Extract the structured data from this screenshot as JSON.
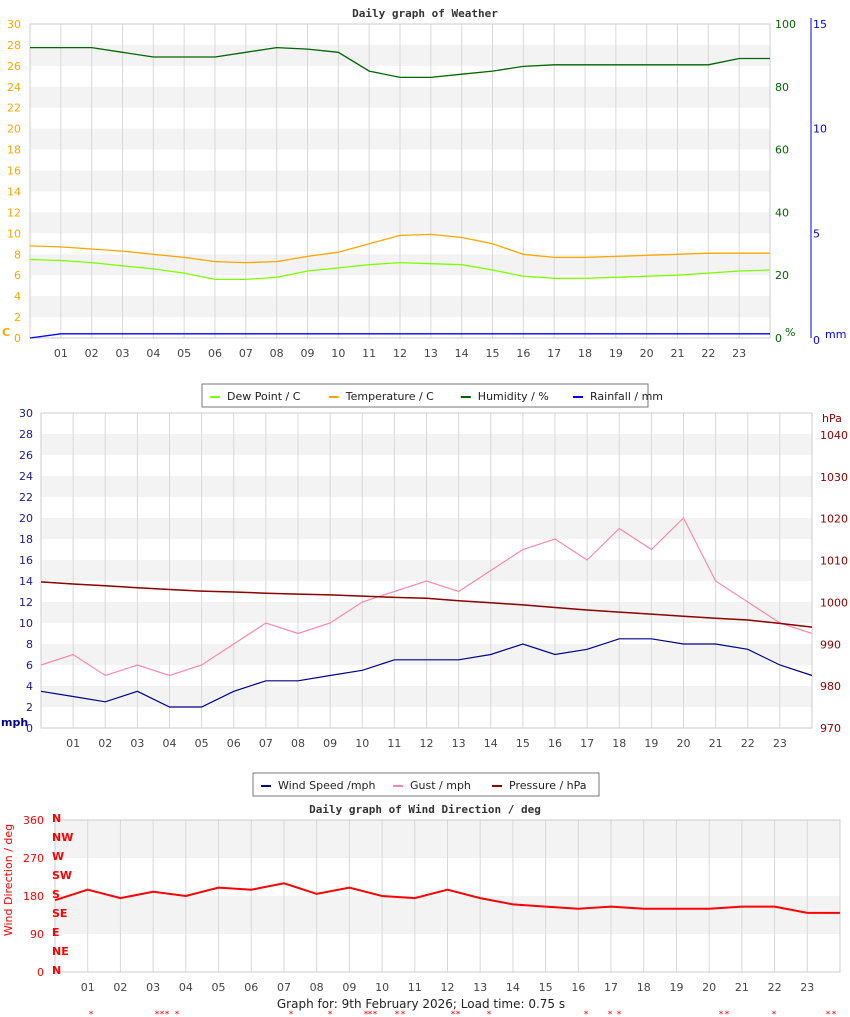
{
  "colors": {
    "dew": "#80ff00",
    "temp": "#ffa500",
    "hum": "#006400",
    "rain": "#0000ff",
    "wind": "#00008b",
    "gust": "#ff88aa",
    "pres": "#8b0000",
    "dir": "#ff0000",
    "grid": "#d8d8d8",
    "band": "#f3f3f3"
  },
  "chart_data": [
    {
      "type": "line",
      "title": "Daily graph of Weather",
      "x_tick_labels": [
        "01",
        "02",
        "03",
        "04",
        "05",
        "06",
        "07",
        "08",
        "09",
        "10",
        "11",
        "12",
        "13",
        "14",
        "15",
        "16",
        "17",
        "18",
        "19",
        "20",
        "21",
        "22",
        "23"
      ],
      "xlim": [
        0,
        24
      ],
      "axes": {
        "left": {
          "unit": "C",
          "ylim": [
            0,
            30
          ],
          "ticks": [
            0,
            2,
            4,
            6,
            8,
            10,
            12,
            14,
            16,
            18,
            20,
            22,
            24,
            26,
            28,
            30
          ]
        },
        "right1": {
          "unit": "%",
          "ylim": [
            0,
            100
          ],
          "ticks": [
            0,
            20,
            40,
            60,
            80,
            100
          ]
        },
        "right2": {
          "unit": "mm",
          "ylim": [
            0,
            15
          ],
          "ticks": [
            0,
            5,
            10,
            15
          ]
        }
      },
      "grid": true,
      "legend_placement": "bottom",
      "x": [
        0,
        1,
        2,
        3,
        4,
        5,
        6,
        7,
        8,
        9,
        10,
        11,
        12,
        13,
        14,
        15,
        16,
        17,
        18,
        19,
        20,
        21,
        22,
        23,
        24
      ],
      "series": [
        {
          "name": "Dew Point / C",
          "axis": "left",
          "color_key": "dew",
          "values": [
            7.5,
            7.4,
            7.2,
            6.9,
            6.6,
            6.2,
            5.6,
            5.6,
            5.8,
            6.4,
            6.7,
            7.0,
            7.2,
            7.1,
            7.0,
            6.5,
            5.9,
            5.7,
            5.7,
            5.8,
            5.9,
            6.0,
            6.2,
            6.4,
            6.5
          ]
        },
        {
          "name": "Temperature / C",
          "axis": "left",
          "color_key": "temp",
          "values": [
            8.8,
            8.7,
            8.5,
            8.3,
            8.0,
            7.7,
            7.3,
            7.2,
            7.3,
            7.8,
            8.2,
            9.0,
            9.8,
            9.9,
            9.6,
            9.0,
            8.0,
            7.7,
            7.7,
            7.8,
            7.9,
            8.0,
            8.1,
            8.1,
            8.1
          ]
        },
        {
          "name": "Humidity / %",
          "axis": "right1",
          "color_key": "hum",
          "values": [
            92.5,
            92.5,
            92.5,
            91,
            89.5,
            89.5,
            89.5,
            91,
            92.5,
            92,
            91,
            85,
            83,
            83,
            84,
            85,
            86.5,
            87,
            87,
            87,
            87,
            87,
            87,
            89,
            89
          ]
        },
        {
          "name": "Rainfall / mm",
          "axis": "right2",
          "color_key": "rain",
          "values": [
            0,
            0.2,
            0.2,
            0.2,
            0.2,
            0.2,
            0.2,
            0.2,
            0.2,
            0.2,
            0.2,
            0.2,
            0.2,
            0.2,
            0.2,
            0.2,
            0.2,
            0.2,
            0.2,
            0.2,
            0.2,
            0.2,
            0.2,
            0.2,
            0.2
          ]
        }
      ]
    },
    {
      "type": "line",
      "title": "",
      "x_tick_labels": [
        "01",
        "02",
        "03",
        "04",
        "05",
        "06",
        "07",
        "08",
        "09",
        "10",
        "11",
        "12",
        "13",
        "14",
        "15",
        "16",
        "17",
        "18",
        "19",
        "20",
        "21",
        "22",
        "23"
      ],
      "xlim": [
        0,
        24
      ],
      "axes": {
        "left": {
          "unit": "mph",
          "ylim": [
            0,
            30
          ],
          "ticks": [
            0,
            2,
            4,
            6,
            8,
            10,
            12,
            14,
            16,
            18,
            20,
            22,
            24,
            26,
            28,
            30
          ]
        },
        "right1": {
          "unit": "hPa",
          "ylim": [
            970,
            1040
          ],
          "ticks": [
            970,
            980,
            990,
            1000,
            1010,
            1020,
            1030,
            1040
          ]
        }
      },
      "grid": true,
      "legend_placement": "bottom",
      "x": [
        0,
        1,
        2,
        3,
        4,
        5,
        6,
        7,
        8,
        9,
        10,
        11,
        12,
        13,
        14,
        15,
        16,
        17,
        18,
        19,
        20,
        21,
        22,
        23,
        24
      ],
      "series": [
        {
          "name": "Wind Speed /mph",
          "axis": "left",
          "color_key": "wind",
          "values": [
            3.5,
            3,
            2.5,
            3.5,
            2,
            2,
            3.5,
            4.5,
            4.5,
            5,
            5.5,
            6.5,
            6.5,
            6.5,
            7,
            8,
            7,
            7.5,
            8.5,
            8.5,
            8,
            8,
            7.5,
            6,
            5
          ]
        },
        {
          "name": "Gust / mph",
          "axis": "left",
          "color_key": "gust",
          "values": [
            6,
            7,
            5,
            6,
            5,
            6,
            8,
            10,
            9,
            10,
            12,
            13,
            14,
            13,
            15,
            17,
            18,
            16,
            19,
            17,
            20,
            14,
            12,
            10,
            9
          ]
        },
        {
          "name": "Pressure / hPa",
          "axis": "right1",
          "color_key": "pres",
          "values": [
            1004.9,
            1004.4,
            1004,
            1003.5,
            1003.1,
            1002.7,
            1002.5,
            1002.2,
            1002,
            1001.8,
            1001.5,
            1001.2,
            1001,
            1000.4,
            999.9,
            999.4,
            998.8,
            998.2,
            997.7,
            997.2,
            996.7,
            996.2,
            995.8,
            995,
            994.1
          ]
        }
      ]
    },
    {
      "type": "line",
      "title": "Daily graph of Wind Direction / deg",
      "ylabel": "Wind Direction / deg",
      "x_tick_labels": [
        "01",
        "02",
        "03",
        "04",
        "05",
        "06",
        "07",
        "08",
        "09",
        "10",
        "11",
        "12",
        "13",
        "14",
        "15",
        "16",
        "17",
        "18",
        "19",
        "20",
        "21",
        "22",
        "23"
      ],
      "xlim": [
        0,
        24
      ],
      "ylim": [
        0,
        360
      ],
      "y_ticks": [
        0,
        90,
        180,
        270,
        360
      ],
      "compass_labels": [
        "N",
        "NE",
        "E",
        "SE",
        "S",
        "SW",
        "W",
        "NW",
        "N"
      ],
      "grid": true,
      "x": [
        0,
        1,
        2,
        3,
        4,
        5,
        6,
        7,
        8,
        9,
        10,
        11,
        12,
        13,
        14,
        15,
        16,
        17,
        18,
        19,
        20,
        21,
        22,
        23,
        24
      ],
      "series": [
        {
          "color_key": "dir",
          "values": [
            170,
            195,
            175,
            190,
            180,
            200,
            195,
            210,
            185,
            200,
            180,
            175,
            195,
            175,
            160,
            155,
            150,
            155,
            150,
            150,
            150,
            155,
            155,
            140,
            140
          ]
        }
      ]
    }
  ],
  "footer": {
    "text": "Graph for: 9th February 2026; Load time: 0.75 s",
    "marker": "*"
  }
}
